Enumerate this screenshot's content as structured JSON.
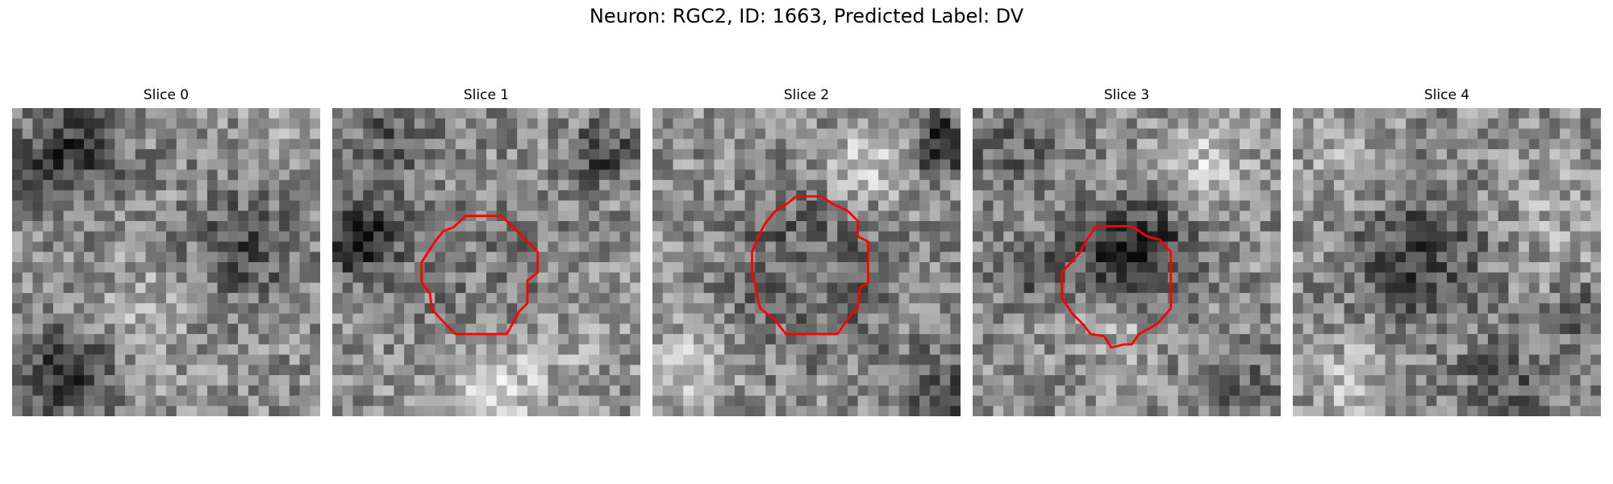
{
  "figure": {
    "title": "Neuron: RGC2, ID: 1663, Predicted Label: DV"
  },
  "contour_color": "#ff0000",
  "panels": [
    {
      "title": "Slice 0",
      "has_contour": false
    },
    {
      "title": "Slice 1",
      "has_contour": true
    },
    {
      "title": "Slice 2",
      "has_contour": true
    },
    {
      "title": "Slice 3",
      "has_contour": true
    },
    {
      "title": "Slice 4",
      "has_contour": false
    }
  ]
}
